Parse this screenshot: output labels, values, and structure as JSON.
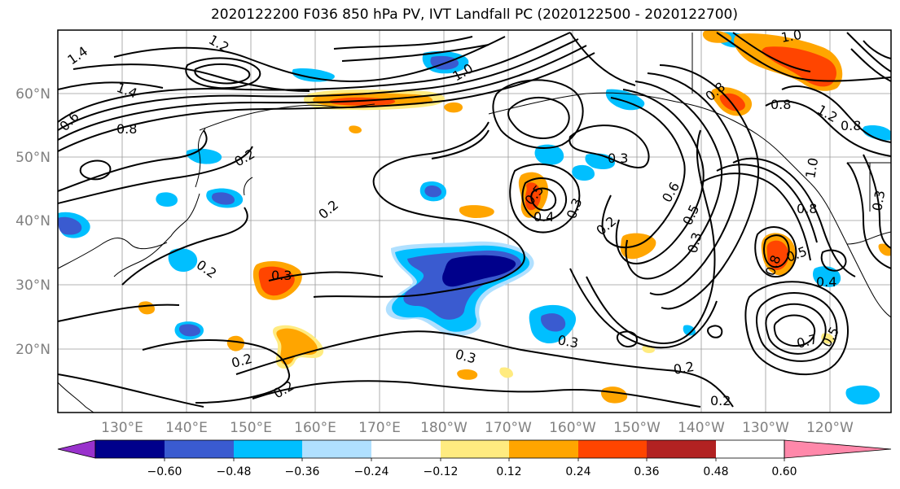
{
  "title": "2020122200 F036 850 hPa PV, IVT Landfall PC (2020122500 - 2020122700)",
  "map": {
    "lon_labels": [
      "130°E",
      "140°E",
      "150°E",
      "160°E",
      "170°E",
      "180°W",
      "170°W",
      "160°W",
      "150°W",
      "140°W",
      "130°W",
      "120°W"
    ],
    "lat_labels": [
      "60°N",
      "50°N",
      "40°N",
      "30°N",
      "20°N"
    ],
    "contour_labels": [
      "1.4",
      "1.4",
      "1.2",
      "0.6",
      "0.8",
      "0.2",
      "0.2",
      "0.2",
      "0.3",
      "0.2",
      "0.2",
      "0.2",
      "0.3",
      "0.3",
      "0.5",
      "0.4",
      "0.3",
      "0.2",
      "0.6",
      "0.5",
      "0.3",
      "0.8",
      "0.5",
      "0.4",
      "0.7",
      "0.5",
      "0.8",
      "0.8",
      "0.8",
      "1.0",
      "1.0",
      "0.8",
      "1.2",
      "1.0",
      "0.3",
      "0.3",
      "0.2"
    ]
  },
  "colorbar": {
    "colors": [
      "#9932CC",
      "#00008B",
      "#3A5BD0",
      "#00BFFF",
      "#B0E0FF",
      "#FFFFFF",
      "#FFEB80",
      "#FFA500",
      "#FF4500",
      "#B22222",
      "#FF88AA"
    ],
    "tick_labels": [
      "−0.60",
      "−0.48",
      "−0.36",
      "−0.24",
      "−0.12",
      "0.12",
      "0.24",
      "0.36",
      "0.48",
      "0.60"
    ]
  }
}
